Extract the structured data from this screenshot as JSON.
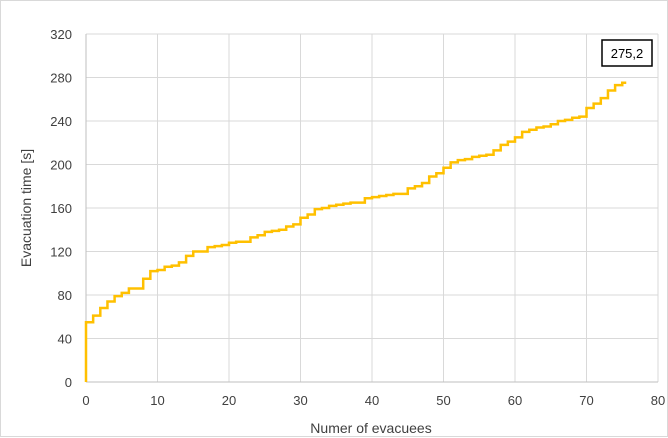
{
  "chart_data": {
    "type": "line",
    "step": true,
    "title": "",
    "xlabel": "Numer of evacuees",
    "ylabel": "Evacuation time [s]",
    "xlim": [
      0,
      80
    ],
    "ylim": [
      0,
      320
    ],
    "xticks": [
      0,
      10,
      20,
      30,
      40,
      50,
      60,
      70,
      80
    ],
    "yticks": [
      0,
      40,
      80,
      120,
      160,
      200,
      240,
      280,
      320
    ],
    "grid": true,
    "legend": "none",
    "series_color": "#FFC000",
    "annotation": "275,2",
    "x": [
      0,
      1,
      2,
      3,
      4,
      5,
      6,
      7,
      8,
      9,
      10,
      11,
      12,
      13,
      14,
      15,
      16,
      17,
      18,
      19,
      20,
      21,
      22,
      23,
      24,
      25,
      26,
      27,
      28,
      29,
      30,
      31,
      32,
      33,
      34,
      35,
      36,
      37,
      38,
      39,
      40,
      41,
      42,
      43,
      44,
      45,
      46,
      47,
      48,
      49,
      50,
      51,
      52,
      53,
      54,
      55,
      56,
      57,
      58,
      59,
      60,
      61,
      62,
      63,
      64,
      65,
      66,
      67,
      68,
      69,
      70,
      71,
      72,
      73,
      74,
      75
    ],
    "y": [
      55,
      61,
      68,
      74,
      79,
      82,
      86,
      86,
      95,
      102,
      103,
      106,
      107,
      110,
      116,
      120,
      120,
      124,
      125,
      126,
      128,
      129,
      129,
      133,
      135,
      138,
      139,
      140,
      143,
      145,
      151,
      154,
      159,
      160,
      162,
      163,
      164,
      165,
      165,
      169,
      170,
      171,
      172,
      173,
      173,
      178,
      180,
      183,
      189,
      192,
      197,
      202,
      204,
      205,
      207,
      208,
      209,
      213,
      218,
      221,
      225,
      230,
      232,
      234,
      235,
      237,
      240,
      241,
      243,
      244,
      252,
      256,
      261,
      268,
      273,
      275.2
    ]
  }
}
